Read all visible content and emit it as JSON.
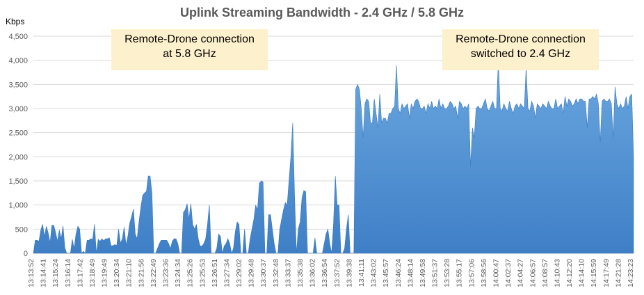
{
  "chart_data": {
    "type": "area",
    "title": "Uplink Streaming Bandwidth - 2.4 GHz / 5.8 GHz",
    "ylabel": "Kbps",
    "ylim": [
      0,
      4500
    ],
    "y_ticks": [
      "0",
      "500",
      "1,000",
      "1,500",
      "2,000",
      "2,500",
      "3,000",
      "3,500",
      "4,000",
      "4,500"
    ],
    "grid": true,
    "colors": {
      "fill_top": "#6aa7e0",
      "fill_bottom": "#3f7fc6",
      "grid": "#d9d9d9",
      "annotation_bg": "#fdf0cc"
    },
    "x_labels": [
      "13:13:52",
      "13:14:41",
      "13:15:24",
      "13:16:14",
      "13:17:42",
      "13:18:49",
      "13:19:49",
      "13:20:34",
      "13:21:10",
      "13:21:56",
      "13:22:49",
      "13:23:36",
      "13:24:34",
      "13:25:26",
      "13:25:53",
      "13:26:51",
      "13:27:34",
      "13:29:02",
      "13:29:48",
      "13:30:37",
      "13:32:48",
      "13:33:37",
      "13:35:38",
      "13:36:02",
      "13:36:54",
      "13:37:52",
      "13:39:38",
      "13:41:11",
      "13:43:02",
      "13:45:57",
      "13:46:24",
      "13:48:14",
      "13:49:58",
      "13:51:37",
      "13:53:28",
      "13:55:17",
      "13:57:06",
      "13:58:56",
      "14:00:47",
      "14:02:37",
      "14:04:27",
      "14:06:57",
      "14:08:57",
      "14:10:43",
      "14:12:20",
      "14:14:10",
      "14:15:59",
      "14:17:49",
      "14:21:28",
      "14:23:23"
    ],
    "values": [
      0,
      270,
      270,
      250,
      480,
      600,
      350,
      560,
      420,
      220,
      580,
      580,
      430,
      250,
      480,
      300,
      570,
      110,
      0,
      0,
      0,
      290,
      100,
      400,
      560,
      500,
      0,
      40,
      0,
      270,
      270,
      300,
      290,
      600,
      0,
      290,
      250,
      300,
      260,
      300,
      300,
      320,
      150,
      160,
      180,
      160,
      500,
      210,
      300,
      540,
      170,
      350,
      620,
      760,
      920,
      400,
      300,
      650,
      950,
      1200,
      1250,
      1280,
      1600,
      1600,
      1250,
      0,
      0,
      100,
      200,
      270,
      270,
      270,
      270,
      200,
      100,
      250,
      300,
      300,
      200,
      0,
      0,
      850,
      900,
      1030,
      700,
      1030,
      600,
      500,
      600,
      300,
      150,
      150,
      200,
      300,
      600,
      1000,
      0,
      0,
      0,
      100,
      400,
      350,
      0,
      150,
      200,
      300,
      200,
      0,
      100,
      450,
      650,
      600,
      0,
      0,
      500,
      0,
      0,
      300,
      500,
      700,
      1000,
      900,
      1450,
      1500,
      1480,
      0,
      0,
      800,
      800,
      500,
      200,
      0,
      0,
      500,
      700,
      900,
      1050,
      1000,
      1500,
      2000,
      2700,
      1200,
      0,
      500,
      650,
      1150,
      1300,
      1280,
      0,
      0,
      0,
      0,
      320,
      0,
      0,
      0,
      0,
      200,
      400,
      500,
      200,
      0,
      600,
      1600,
      1000,
      1000,
      0,
      0,
      100,
      500,
      800,
      0,
      0,
      0,
      3400,
      3500,
      3400,
      3000,
      2400,
      3100,
      3200,
      3150,
      2700,
      2700,
      3200,
      2900,
      2600,
      3300,
      2700,
      2800,
      2800,
      2700,
      2900,
      2900,
      3000,
      3050,
      3900,
      3000,
      2900,
      3100,
      3000,
      3050,
      3100,
      2800,
      3100,
      3000,
      3150,
      3200,
      3150,
      3000,
      3000,
      3050,
      2900,
      3100,
      3000,
      3150,
      3000,
      3050,
      3000,
      3200,
      3000,
      3100,
      3000,
      3000,
      3050,
      3150,
      3100,
      3000,
      3050,
      2800,
      3150,
      3100,
      3000,
      3050,
      3000,
      3100,
      1800,
      2600,
      2400,
      3000,
      3050,
      3000,
      3000,
      3100,
      3200,
      3000,
      2950,
      3050,
      3150,
      3000,
      3000,
      4000,
      3000,
      2950,
      3100,
      3000,
      2950,
      3150,
      3000,
      2900,
      3050,
      3100,
      3000,
      3100,
      3050,
      3000,
      3850,
      3000,
      2950,
      3150,
      3050,
      2800,
      3100,
      3050,
      3000,
      3100,
      3050,
      3000,
      3150,
      3050,
      3000,
      3000,
      3200,
      3000,
      3050,
      3100,
      2900,
      3250,
      3050,
      3200,
      3150,
      3050,
      3100,
      3200,
      3100,
      3200,
      3200,
      3150,
      3150,
      2600,
      3200,
      3200,
      3250,
      3200,
      3300,
      3100,
      2300,
      3150,
      3200,
      3150,
      3150,
      3200,
      3100,
      2400,
      3450,
      3100,
      3000,
      3100,
      3000,
      3050,
      3250,
      3000,
      3250,
      3300,
      2000
    ]
  },
  "annotations": [
    {
      "line1": "Remote-Drone connection",
      "line2": "at 5.8 GHz"
    },
    {
      "line1": "Remote-Drone connection",
      "line2": "switched to 2.4 GHz"
    }
  ]
}
